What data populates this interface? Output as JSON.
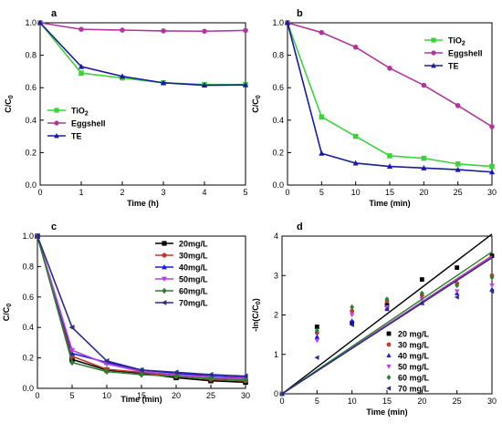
{
  "chart_data": [
    {
      "panel": "a",
      "type": "line",
      "xlabel": "Time (h)",
      "ylabel": "C/C0",
      "xlim": [
        0,
        5
      ],
      "ylim": [
        0.0,
        1.0
      ],
      "xticks": [
        "0",
        "1",
        "2",
        "3",
        "4",
        "5"
      ],
      "yticks": [
        "0.0",
        "0.2",
        "0.4",
        "0.6",
        "0.8",
        "1.0"
      ],
      "legend_position": "lower-left",
      "x": [
        0,
        1,
        2,
        3,
        4,
        5
      ],
      "series": [
        {
          "name": "TiO2",
          "color": "#3cd23c",
          "marker": "square",
          "values": [
            1.0,
            0.69,
            0.66,
            0.63,
            0.62,
            0.62
          ]
        },
        {
          "name": "Eggshell",
          "color": "#b0369e",
          "marker": "circle",
          "values": [
            1.0,
            0.96,
            0.955,
            0.95,
            0.948,
            0.953
          ]
        },
        {
          "name": "TE",
          "color": "#1a1aa0",
          "marker": "triangle-up",
          "values": [
            1.0,
            0.73,
            0.67,
            0.63,
            0.615,
            0.617
          ]
        }
      ]
    },
    {
      "panel": "b",
      "type": "line",
      "xlabel": "Time (min)",
      "ylabel": "C/C0",
      "xlim": [
        0,
        30
      ],
      "ylim": [
        0.0,
        1.0
      ],
      "xticks": [
        "0",
        "5",
        "10",
        "15",
        "20",
        "25",
        "30"
      ],
      "yticks": [
        "0.0",
        "0.2",
        "0.4",
        "0.6",
        "0.8",
        "1.0"
      ],
      "legend_position": "top-right",
      "x": [
        0,
        5,
        10,
        15,
        20,
        25,
        30
      ],
      "series": [
        {
          "name": "TiO2",
          "color": "#3cd23c",
          "marker": "square",
          "values": [
            1.0,
            0.42,
            0.3,
            0.18,
            0.165,
            0.13,
            0.115
          ]
        },
        {
          "name": "Eggshell",
          "color": "#b0369e",
          "marker": "circle",
          "values": [
            1.0,
            0.94,
            0.85,
            0.72,
            0.615,
            0.49,
            0.36
          ]
        },
        {
          "name": "TE",
          "color": "#1a1aa0",
          "marker": "triangle-up",
          "values": [
            1.0,
            0.195,
            0.135,
            0.115,
            0.105,
            0.095,
            0.08
          ]
        }
      ]
    },
    {
      "panel": "c",
      "type": "line",
      "xlabel": "Time (min)",
      "ylabel": "C/C0",
      "xlim": [
        0,
        30
      ],
      "ylim": [
        0.0,
        1.0
      ],
      "xticks": [
        "0",
        "5",
        "10",
        "15",
        "20",
        "25",
        "30"
      ],
      "yticks": [
        "0.0",
        "0.2",
        "0.4",
        "0.6",
        "0.8",
        "1.0"
      ],
      "legend_position": "top-right",
      "x": [
        0,
        5,
        10,
        15,
        20,
        25,
        30
      ],
      "series": [
        {
          "name": "20mg/L",
          "color": "#000000",
          "marker": "square",
          "values": [
            1.0,
            0.19,
            0.12,
            0.1,
            0.07,
            0.05,
            0.04
          ]
        },
        {
          "name": "30mg/L",
          "color": "#c0392b",
          "marker": "circle",
          "values": [
            1.0,
            0.21,
            0.125,
            0.105,
            0.08,
            0.06,
            0.05
          ]
        },
        {
          "name": "40mg/L",
          "color": "#1a1ae0",
          "marker": "triangle-up",
          "values": [
            1.0,
            0.23,
            0.17,
            0.12,
            0.1,
            0.08,
            0.07
          ]
        },
        {
          "name": "50mg/L",
          "color": "#b040e0",
          "marker": "triangle-down",
          "values": [
            1.0,
            0.25,
            0.16,
            0.11,
            0.09,
            0.075,
            0.065
          ]
        },
        {
          "name": "60mg/L",
          "color": "#2e7d32",
          "marker": "diamond",
          "values": [
            1.0,
            0.17,
            0.11,
            0.09,
            0.08,
            0.065,
            0.055
          ]
        },
        {
          "name": "70mg/L",
          "color": "#2a2a8c",
          "marker": "triangle-left",
          "values": [
            1.0,
            0.4,
            0.18,
            0.12,
            0.105,
            0.09,
            0.08
          ]
        }
      ]
    },
    {
      "panel": "d",
      "type": "scatter",
      "xlabel": "Time (min)",
      "ylabel": "-ln(C/C0)",
      "xlim": [
        0,
        30
      ],
      "ylim": [
        0,
        4
      ],
      "xticks": [
        "0",
        "5",
        "10",
        "15",
        "20",
        "25",
        "30"
      ],
      "yticks": [
        "0",
        "1",
        "2",
        "3",
        "4"
      ],
      "legend_position": "lower-right",
      "x": [
        0,
        5,
        10,
        15,
        20,
        25,
        30
      ],
      "series": [
        {
          "name": "20 mg/L",
          "color": "#000000",
          "marker": "square",
          "values": [
            0,
            1.7,
            1.8,
            2.25,
            2.9,
            3.2,
            3.5
          ],
          "fit": [
            0,
            4.05
          ]
        },
        {
          "name": "30 mg/L",
          "color": "#c0392b",
          "marker": "circle",
          "values": [
            0,
            1.55,
            2.1,
            2.35,
            2.5,
            2.8,
            3.0
          ],
          "fit": [
            0,
            3.5
          ]
        },
        {
          "name": "40 mg/L",
          "color": "#1a1ae0",
          "marker": "triangle-up",
          "values": [
            0,
            1.45,
            1.85,
            2.15,
            2.3,
            2.55,
            2.65
          ],
          "fit": [
            0,
            3.48
          ]
        },
        {
          "name": "50 mg/L",
          "color": "#c040f0",
          "marker": "triangle-down",
          "values": [
            0,
            1.35,
            2.0,
            2.2,
            2.4,
            2.6,
            2.75
          ],
          "fit": [
            0,
            3.48
          ]
        },
        {
          "name": "60 mg/L",
          "color": "#2e7d32",
          "marker": "diamond",
          "values": [
            0,
            1.6,
            2.2,
            2.4,
            2.55,
            2.75,
            2.95
          ],
          "fit": [
            0,
            3.6
          ]
        },
        {
          "name": "70 mg/L",
          "color": "#2a2a8c",
          "marker": "triangle-left",
          "values": [
            0,
            0.92,
            1.75,
            2.15,
            2.3,
            2.45,
            2.6
          ],
          "fit": [
            0,
            3.45
          ]
        }
      ]
    }
  ]
}
